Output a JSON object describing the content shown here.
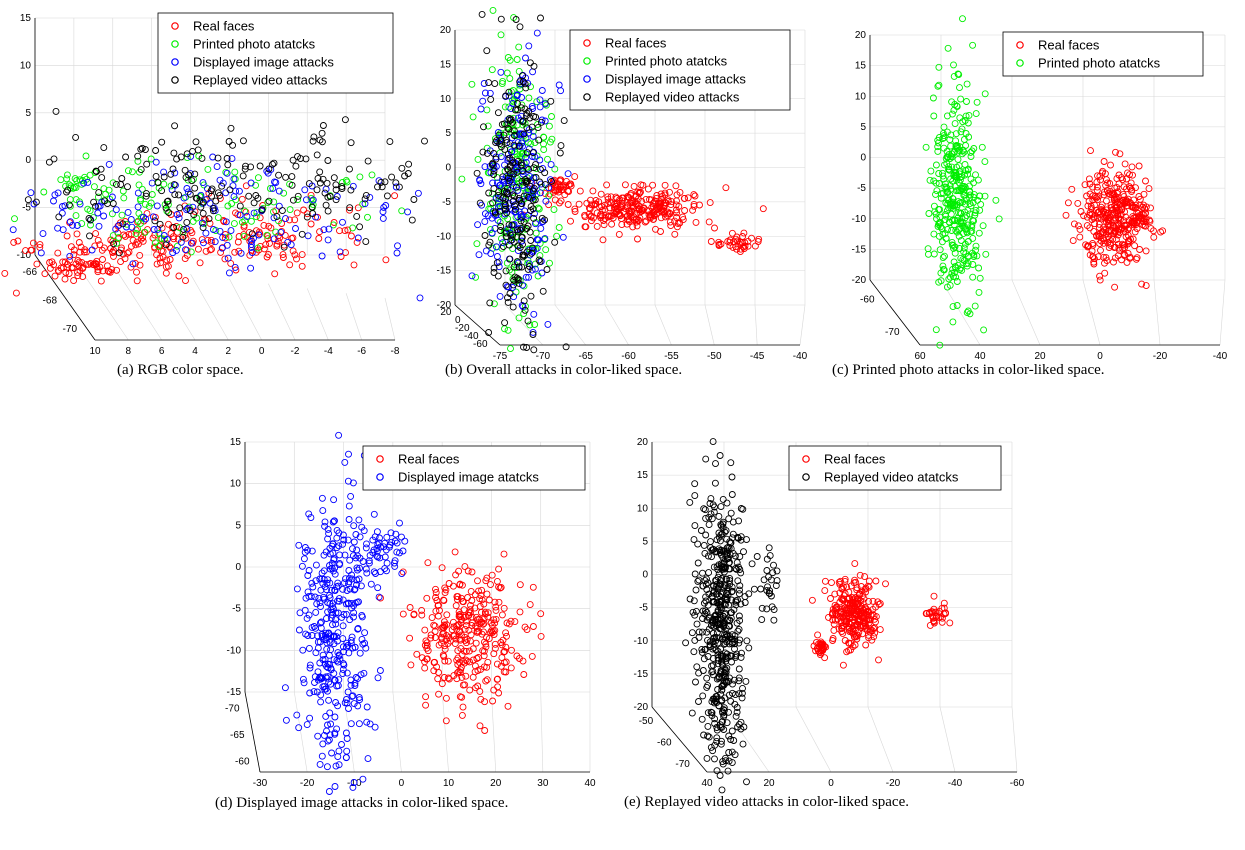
{
  "chart_data": [
    {
      "type": "scatter",
      "caption": "(a) RGB color space.",
      "legend": [
        "Real faces",
        "Printed photo atatcks",
        "Displayed image attacks",
        "Replayed video attacks"
      ],
      "legend_colors": [
        "#ff0000",
        "#00ee00",
        "#0000ff",
        "#000000"
      ],
      "z_ticks": [
        "15",
        "10",
        "5",
        "0",
        "-5",
        "-10"
      ],
      "y_ticks": [
        "-66",
        "-68",
        "-70"
      ],
      "x_ticks": [
        "10",
        "8",
        "6",
        "4",
        "2",
        "0",
        "-2",
        "-4",
        "-6",
        "-8"
      ],
      "zlim": [
        -10,
        15
      ],
      "xlim": [
        10,
        -8
      ],
      "ylim": [
        -71,
        -65
      ],
      "series": [
        {
          "name": "Real faces",
          "color": "#ff0000",
          "clusters": [
            [
              6,
              -68,
              -7,
              3.0,
              0.6,
              1.5,
              120
            ],
            [
              -1,
              -67.5,
              -6,
              3.5,
              0.7,
              1.8,
              120
            ],
            [
              8,
              -69,
              -9,
              1.0,
              0.3,
              0.6,
              40
            ]
          ]
        },
        {
          "name": "Printed photo atatcks",
          "color": "#00ee00",
          "clusters": [
            [
              3,
              -67,
              -3,
              5.0,
              0.9,
              2.2,
              130
            ],
            [
              9,
              -66,
              -1,
              1.0,
              0.3,
              0.5,
              20
            ]
          ]
        },
        {
          "name": "Displayed image attacks",
          "color": "#0000ff",
          "clusters": [
            [
              2,
              -67,
              -4,
              5.5,
              1.0,
              3.0,
              170
            ]
          ]
        },
        {
          "name": "Replayed video attacks",
          "color": "#000000",
          "clusters": [
            [
              0,
              -66.5,
              -1,
              5.5,
              1.0,
              3.0,
              200
            ]
          ]
        }
      ]
    },
    {
      "type": "scatter",
      "caption": "(b) Overall attacks in color-liked space.",
      "legend": [
        "Real faces",
        "Printed photo atatcks",
        "Displayed image attacks",
        "Replayed video attacks"
      ],
      "legend_colors": [
        "#ff0000",
        "#00ee00",
        "#0000ff",
        "#000000"
      ],
      "z_ticks": [
        "20",
        "15",
        "10",
        "5",
        "0",
        "-5",
        "-10",
        "-15",
        "-20"
      ],
      "y_ticks": [
        "20",
        "0",
        "-20",
        "-40",
        "-60"
      ],
      "x_ticks": [
        "-75",
        "-70",
        "-65",
        "-60",
        "-55",
        "-50",
        "-45",
        "-40"
      ],
      "zlim": [
        -20,
        20
      ],
      "xlim": [
        -75,
        -40
      ],
      "ylim": [
        -60,
        20
      ],
      "series": [
        {
          "name": "Real faces",
          "color": "#ff0000",
          "clusters": [
            [
              -58,
              0,
              -4,
              3.5,
              5,
              1.5,
              260
            ],
            [
              -66,
              0,
              -1,
              1.0,
              2,
              1.0,
              40
            ],
            [
              -47,
              0,
              -9,
              1.2,
              2,
              0.7,
              35
            ]
          ]
        },
        {
          "name": "Printed photo atatcks",
          "color": "#00ee00",
          "clusters": [
            [
              -71,
              0,
              0,
              2.0,
              5,
              9.5,
              220
            ]
          ]
        },
        {
          "name": "Displayed image attacks",
          "color": "#0000ff",
          "clusters": [
            [
              -71,
              0,
              0,
              2.0,
              5,
              9.5,
              220
            ]
          ]
        },
        {
          "name": "Replayed video attacks",
          "color": "#000000",
          "clusters": [
            [
              -71,
              0,
              -2,
              2.0,
              5,
              9.5,
              230
            ]
          ]
        }
      ]
    },
    {
      "type": "scatter",
      "caption": "(c) Printed photo attacks in color-liked space.",
      "legend": [
        "Real faces",
        "Printed photo atatcks"
      ],
      "legend_colors": [
        "#ff0000",
        "#00ee00"
      ],
      "z_ticks": [
        "20",
        "15",
        "10",
        "5",
        "0",
        "-5",
        "-10",
        "-15",
        "-20"
      ],
      "y_ticks": [
        "-60",
        "-70"
      ],
      "x_ticks": [
        "60",
        "40",
        "20",
        "0",
        "-20",
        "-40"
      ],
      "zlim": [
        -20,
        20
      ],
      "xlim": [
        60,
        -40
      ],
      "ylim": [
        -72,
        -55
      ],
      "series": [
        {
          "name": "Real faces",
          "color": "#ff0000",
          "clusters": [
            [
              -8,
              -62,
              -7,
              5,
              1.5,
              4,
              320
            ],
            [
              -16,
              -62,
              -6,
              2,
              1,
              1.2,
              40
            ]
          ]
        },
        {
          "name": "Printed photo atatcks",
          "color": "#00ee00",
          "clusters": [
            [
              40,
              -62,
              -3,
              4,
              2,
              9,
              360
            ]
          ]
        }
      ]
    },
    {
      "type": "scatter",
      "caption": "(d) Displayed image attacks in color-liked space.",
      "legend": [
        "Real faces",
        "Displayed image atatcks"
      ],
      "legend_colors": [
        "#ff0000",
        "#0000ff"
      ],
      "z_ticks": [
        "15",
        "10",
        "5",
        "0",
        "-5",
        "-10",
        "-15"
      ],
      "y_ticks": [
        "-70",
        "-65",
        "-60"
      ],
      "x_ticks": [
        "-30",
        "-20",
        "-10",
        "0",
        "10",
        "20",
        "30",
        "40"
      ],
      "zlim": [
        -15,
        15
      ],
      "xlim": [
        -30,
        40
      ],
      "ylim": [
        -71,
        -59
      ],
      "series": [
        {
          "name": "Real faces",
          "color": "#ff0000",
          "clusters": [
            [
              15,
              -64,
              -6,
              6,
              1.5,
              4,
              320
            ]
          ]
        },
        {
          "name": "Displayed image atatcks",
          "color": "#0000ff",
          "clusters": [
            [
              -15,
              -64,
              -5,
              4,
              2,
              8,
              360
            ],
            [
              -5,
              -64,
              4,
              3,
              1,
              1.5,
              60
            ]
          ]
        }
      ]
    },
    {
      "type": "scatter",
      "caption": "(e) Replayed video attacks in color-liked space.",
      "legend": [
        "Real faces",
        "Replayed video atatcks"
      ],
      "legend_colors": [
        "#ff0000",
        "#000000"
      ],
      "z_ticks": [
        "20",
        "15",
        "10",
        "5",
        "0",
        "-5",
        "-10",
        "-15",
        "-20"
      ],
      "y_ticks": [
        "-50",
        "-60",
        "-70"
      ],
      "x_ticks": [
        "40",
        "20",
        "0",
        "-20",
        "-40",
        "-60"
      ],
      "zlim": [
        -20,
        20
      ],
      "xlim": [
        40,
        -60
      ],
      "ylim": [
        -72,
        -48
      ],
      "series": [
        {
          "name": "Real faces",
          "color": "#ff0000",
          "clusters": [
            [
              -15,
              -60,
              -3,
              4,
              2,
              2.5,
              260
            ],
            [
              -5,
              -60,
              -8,
              1,
              1,
              0.8,
              30
            ],
            [
              -40,
              -60,
              -3,
              1.5,
              1,
              0.8,
              30
            ]
          ]
        },
        {
          "name": "Replayed video atatcks",
          "color": "#000000",
          "clusters": [
            [
              25,
              -60,
              -5,
              3.5,
              2,
              10,
              520
            ],
            [
              10,
              -60,
              1,
              1.5,
              1,
              2.5,
              25
            ]
          ]
        }
      ]
    }
  ]
}
